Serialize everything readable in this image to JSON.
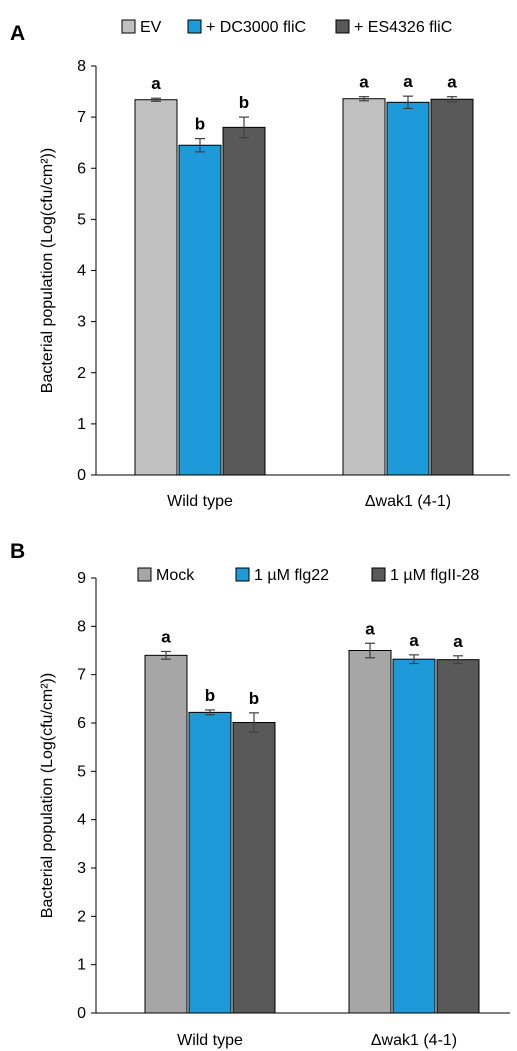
{
  "chart_data": [
    {
      "type": "bar",
      "panel": "A",
      "categories": [
        "Wild type",
        "Δwak1 (4-1)"
      ],
      "series": [
        {
          "name": "EV",
          "color": "#c0c0c0",
          "values": [
            7.34,
            7.36
          ],
          "errors": [
            0.03,
            0.04
          ],
          "letters": [
            "a",
            "a"
          ]
        },
        {
          "name": "+ DC3000 fliC",
          "color": "#1f9ad9",
          "values": [
            6.45,
            7.29
          ],
          "errors": [
            0.13,
            0.12
          ],
          "letters": [
            "b",
            "a"
          ]
        },
        {
          "name": "+ ES4326 fliC",
          "color": "#595959",
          "values": [
            6.8,
            7.35
          ],
          "errors": [
            0.2,
            0.05
          ],
          "letters": [
            "b",
            "a"
          ]
        }
      ],
      "ylabel": "Bacterial population (Log(cfu/cm²))",
      "ylim": [
        0,
        8
      ],
      "yticks": [
        "0",
        "1",
        "2",
        "3",
        "4",
        "5",
        "6",
        "7",
        "8"
      ],
      "grid": false,
      "legend": "top"
    },
    {
      "type": "bar",
      "panel": "B",
      "categories": [
        "Wild type",
        "Δwak1 (4-1)"
      ],
      "series": [
        {
          "name": "Mock",
          "color": "#a6a6a6",
          "values": [
            7.4,
            7.5
          ],
          "errors": [
            0.08,
            0.15
          ],
          "letters": [
            "a",
            "a"
          ]
        },
        {
          "name": "1 µM flg22",
          "color": "#1f9ad9",
          "values": [
            6.22,
            7.32
          ],
          "errors": [
            0.05,
            0.09
          ],
          "letters": [
            "b",
            "a"
          ]
        },
        {
          "name": "1 µM flgII-28",
          "color": "#595959",
          "values": [
            6.01,
            7.31
          ],
          "errors": [
            0.2,
            0.08
          ],
          "letters": [
            "b",
            "a"
          ]
        }
      ],
      "ylabel": "Bacterial population (Log(cfu/cm²))",
      "ylim": [
        0,
        9
      ],
      "yticks": [
        "0",
        "1",
        "2",
        "3",
        "4",
        "5",
        "6",
        "7",
        "8",
        "9"
      ],
      "grid": false,
      "legend": "top"
    }
  ]
}
